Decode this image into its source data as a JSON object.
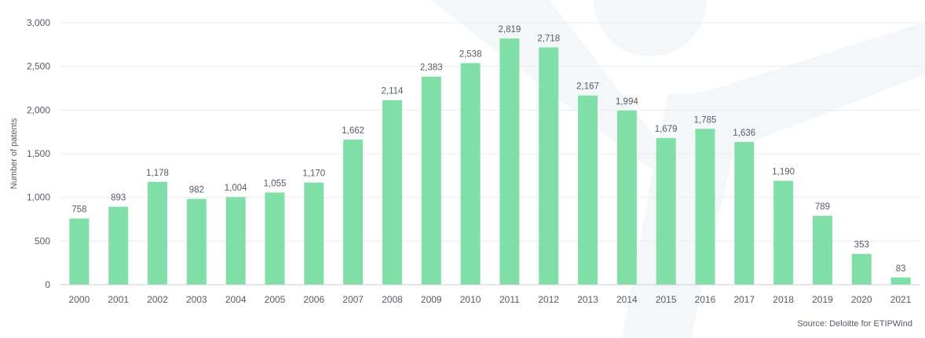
{
  "chart_data": {
    "type": "bar",
    "title": "",
    "xlabel": "",
    "ylabel": "Number of patents",
    "ylim": [
      0,
      3000
    ],
    "yticks": [
      0,
      500,
      1000,
      1500,
      2000,
      2500,
      3000
    ],
    "ytick_labels": [
      "0",
      "500",
      "1,000",
      "1,500",
      "2,000",
      "2,500",
      "3,000"
    ],
    "grid": true,
    "categories": [
      "2000",
      "2001",
      "2002",
      "2003",
      "2004",
      "2005",
      "2006",
      "2007",
      "2008",
      "2009",
      "2010",
      "2011",
      "2012",
      "2013",
      "2014",
      "2015",
      "2016",
      "2017",
      "2018",
      "2019",
      "2020",
      "2021"
    ],
    "values": [
      758,
      893,
      1178,
      982,
      1004,
      1055,
      1170,
      1662,
      2114,
      2383,
      2538,
      2819,
      2718,
      2167,
      1994,
      1679,
      1785,
      1636,
      1190,
      789,
      353,
      83
    ],
    "value_labels": [
      "758",
      "893",
      "1,178",
      "982",
      "1,004",
      "1,055",
      "1,170",
      "1,662",
      "2,114",
      "2,383",
      "2,538",
      "2,819",
      "2,718",
      "2,167",
      "1,994",
      "1,679",
      "1,785",
      "1,636",
      "1,190",
      "789",
      "353",
      "83"
    ],
    "source": "Source: Deloitte for ETIPWind"
  },
  "colors": {
    "bar": "#80dfa6",
    "grid": "#e9ecef",
    "axis": "#c9ced4",
    "text": "#555b66",
    "watermark": "#f4f7fa"
  }
}
